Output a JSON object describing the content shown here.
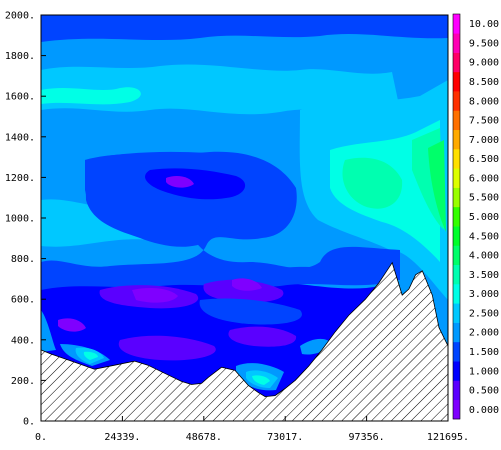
{
  "chart_data": {
    "type": "contour",
    "x_ticks": [
      "0.",
      "24339.",
      "48678.",
      "73017.",
      "97356.",
      "121695."
    ],
    "y_ticks": [
      "0.",
      "200.",
      "400.",
      "600.",
      "800.",
      "1000.",
      "1200.",
      "1400.",
      "1600.",
      "1800.",
      "2000."
    ],
    "xlim": [
      0,
      121695
    ],
    "ylim": [
      0,
      2000
    ],
    "colorbar": {
      "labels": [
        "0.000",
        "0.500",
        "1.000",
        "1.500",
        "2.000",
        "2.500",
        "3.000",
        "3.500",
        "4.000",
        "4.500",
        "5.000",
        "5.500",
        "6.000",
        "6.500",
        "7.000",
        "7.500",
        "8.000",
        "8.500",
        "9.000",
        "9.500",
        "10.00"
      ],
      "colors": [
        "#7f00ff",
        "#5a00ff",
        "#0000ff",
        "#0044ff",
        "#0099ff",
        "#00c8ff",
        "#00ffe6",
        "#00ffb0",
        "#00ff6a",
        "#00ff2a",
        "#33ff00",
        "#99ff00",
        "#ddff00",
        "#ffe000",
        "#ffaa00",
        "#ff7000",
        "#ff3000",
        "#ff0000",
        "#ff0066",
        "#ff00b4",
        "#ff00ff"
      ]
    },
    "terrain": {
      "x": [
        0,
        3000,
        10000,
        16000,
        22000,
        28000,
        32000,
        37000,
        42000,
        45000,
        48000,
        50000,
        54000,
        58000,
        62000,
        65000,
        67000,
        70000,
        73000,
        76000,
        80000,
        84000,
        88000,
        92000,
        97000,
        101000,
        105000,
        108000,
        110000,
        112000,
        114000,
        117000,
        119000,
        121695
      ],
      "y": [
        350,
        330,
        290,
        255,
        275,
        295,
        275,
        235,
        195,
        180,
        185,
        215,
        265,
        250,
        175,
        140,
        120,
        125,
        160,
        200,
        270,
        350,
        440,
        520,
        600,
        680,
        780,
        620,
        650,
        720,
        740,
        620,
        460,
        370
      ]
    }
  }
}
